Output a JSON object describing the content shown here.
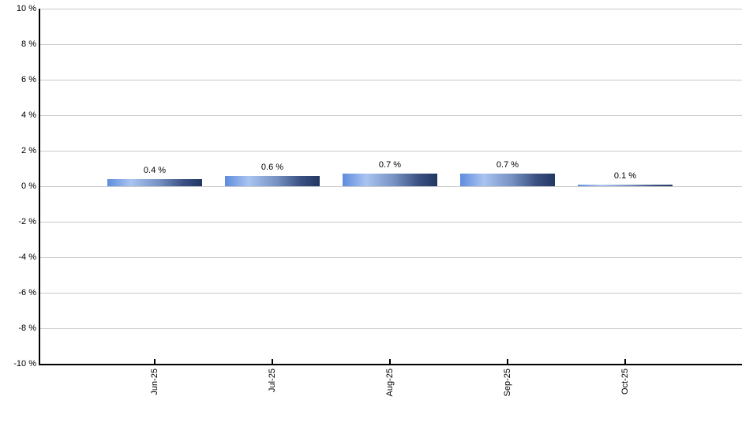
{
  "chart_data": {
    "type": "bar",
    "categories": [
      "Jun-25",
      "Jul-25",
      "Aug-25",
      "Sep-25",
      "Oct-25"
    ],
    "values": [
      0.4,
      0.6,
      0.7,
      0.7,
      0.1
    ],
    "value_labels": [
      "0.4 %",
      "0.6 %",
      "0.7 %",
      "0.7 %",
      "0.1 %"
    ],
    "yticks": [
      {
        "value": 10,
        "label": "10 %"
      },
      {
        "value": 8,
        "label": "8 %"
      },
      {
        "value": 6,
        "label": "6 %"
      },
      {
        "value": 4,
        "label": "4 %"
      },
      {
        "value": 2,
        "label": "2 %"
      },
      {
        "value": 0,
        "label": "0 %"
      },
      {
        "value": -2,
        "label": "-2 %"
      },
      {
        "value": -4,
        "label": "-4 %"
      },
      {
        "value": -6,
        "label": "-6 %"
      },
      {
        "value": -8,
        "label": "-8 %"
      },
      {
        "value": -10,
        "label": "-10 %"
      }
    ],
    "ylim": [
      -10,
      10
    ],
    "grid": true,
    "legend": "none",
    "x_tick_label_rotation_deg": -90,
    "colors": {
      "bar_gradient": [
        "#5e8bdd",
        "#a9c4f0",
        "#7590c2",
        "#3b5183",
        "#223760"
      ],
      "gridline": "#c9c9c9",
      "axis": "#000000",
      "text": "#000000",
      "background": "#ffffff"
    }
  }
}
